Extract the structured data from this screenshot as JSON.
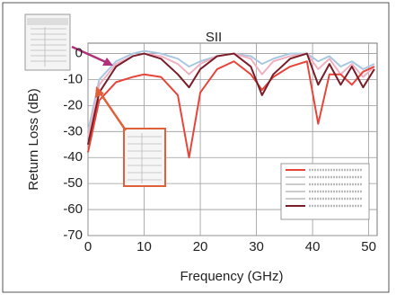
{
  "chart_data": {
    "type": "line",
    "title": "SII",
    "x_label": "Frequency (GHz)",
    "y_label": "Return Loss (dB)",
    "x": [
      0,
      2,
      5,
      8,
      10,
      13,
      16,
      18,
      20,
      23,
      26,
      29,
      31,
      33,
      36,
      39,
      41,
      43,
      45,
      47,
      49,
      51
    ],
    "series": [
      {
        "color": "#a8c8e0",
        "values": [
          -30,
          -10,
          -3,
          0,
          1,
          0,
          -2,
          -5,
          -3,
          -1,
          0,
          -1,
          -4,
          -2,
          0,
          0,
          -3,
          -1,
          -5,
          -3,
          -6,
          -4
        ]
      },
      {
        "color": "#f0b0c0",
        "values": [
          -32,
          -12,
          -4,
          -1,
          0,
          -1,
          -4,
          -8,
          -4,
          -1,
          0,
          -2,
          -8,
          -3,
          -1,
          0,
          -6,
          -2,
          -8,
          -4,
          -9,
          -5
        ]
      },
      {
        "color": "#e8453a",
        "values": [
          -38,
          -18,
          -11,
          -9,
          -8,
          -9,
          -16,
          -40,
          -15,
          -6,
          -3,
          -8,
          -14,
          -9,
          -5,
          -3,
          -27,
          -8,
          -8,
          -12,
          -7,
          -5
        ]
      },
      {
        "color": "#7a1e2a",
        "values": [
          -35,
          -15,
          -5,
          -1,
          0,
          -2,
          -8,
          -13,
          -6,
          -1,
          0,
          -5,
          -16,
          -8,
          -2,
          0,
          -12,
          -4,
          -12,
          -5,
          -13,
          -6
        ]
      }
    ],
    "xlim": [
      0,
      51.5
    ],
    "xticks": [
      0,
      10,
      20,
      30,
      40,
      50
    ],
    "ylim": [
      -70,
      4
    ],
    "yticks": [
      0,
      -10,
      -20,
      -30,
      -40,
      -50,
      -60,
      -70
    ],
    "grid": true
  }
}
